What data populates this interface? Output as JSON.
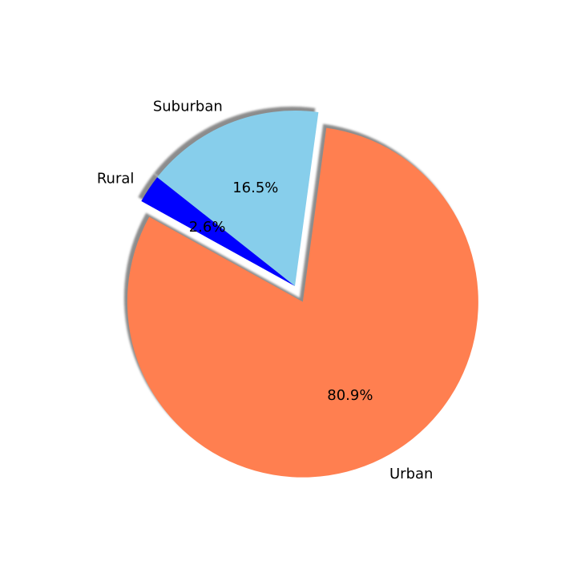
{
  "chart_data": {
    "type": "pie",
    "categories": [
      "Urban",
      "Suburban",
      "Rural"
    ],
    "values": [
      80.9,
      16.5,
      2.6
    ],
    "value_labels": [
      "80.9%",
      "16.5%",
      "2.6%"
    ],
    "colors": [
      "#ff7f50",
      "#87ceeb",
      "#0000ff"
    ],
    "exploded": [
      "Urban"
    ],
    "shadow": true,
    "title": "",
    "legend": false
  }
}
